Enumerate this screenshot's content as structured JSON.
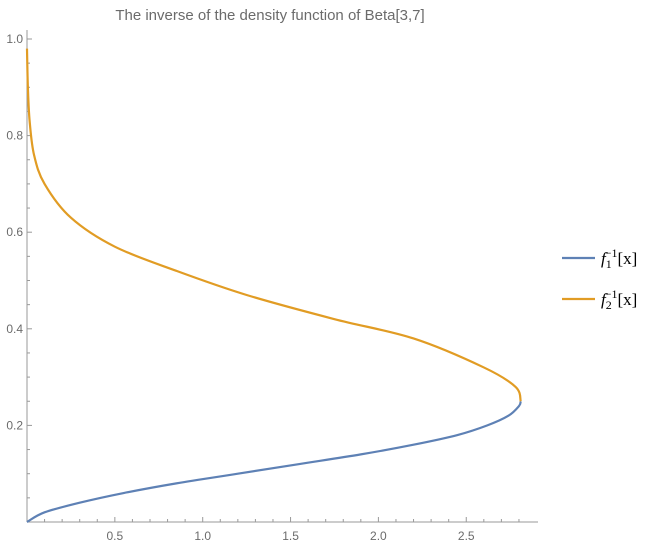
{
  "chart_data": {
    "type": "line",
    "title": "The inverse of the density function of Beta[3,7]",
    "xlabel": "",
    "ylabel": "",
    "xlim": [
      0,
      2.9
    ],
    "ylim": [
      0,
      1.02
    ],
    "x_ticks": [
      "0.5",
      "1.0",
      "1.5",
      "2.0",
      "2.5"
    ],
    "y_ticks": [
      "0.2",
      "0.4",
      "0.6",
      "0.8",
      "1.0"
    ],
    "grid": false,
    "legend_position": "right",
    "series": [
      {
        "name": "f1−1[x]",
        "legend_base": "f",
        "legend_sub": "1",
        "legend_sup": "−1",
        "legend_tail": "[x]",
        "color": "#5E81B5",
        "points": [
          [
            0,
            0
          ],
          [
            0.1,
            0.02
          ],
          [
            0.3,
            0.04
          ],
          [
            0.55,
            0.06
          ],
          [
            0.85,
            0.08
          ],
          [
            1.2,
            0.1
          ],
          [
            1.55,
            0.12
          ],
          [
            1.9,
            0.14
          ],
          [
            2.2,
            0.16
          ],
          [
            2.45,
            0.18
          ],
          [
            2.62,
            0.2
          ],
          [
            2.74,
            0.22
          ],
          [
            2.8,
            0.24
          ],
          [
            2.81,
            0.25
          ]
        ]
      },
      {
        "name": "f2−1[x]",
        "legend_base": "f",
        "legend_sub": "2",
        "legend_sup": "−1",
        "legend_tail": "[x]",
        "color": "#E19C24",
        "points": [
          [
            2.81,
            0.25
          ],
          [
            2.78,
            0.28
          ],
          [
            2.6,
            0.32
          ],
          [
            2.2,
            0.38
          ],
          [
            1.75,
            0.42
          ],
          [
            1.25,
            0.47
          ],
          [
            0.85,
            0.52
          ],
          [
            0.5,
            0.57
          ],
          [
            0.25,
            0.63
          ],
          [
            0.1,
            0.7
          ],
          [
            0.04,
            0.76
          ],
          [
            0.015,
            0.83
          ],
          [
            0.005,
            0.9
          ],
          [
            0,
            0.98
          ]
        ]
      }
    ]
  }
}
